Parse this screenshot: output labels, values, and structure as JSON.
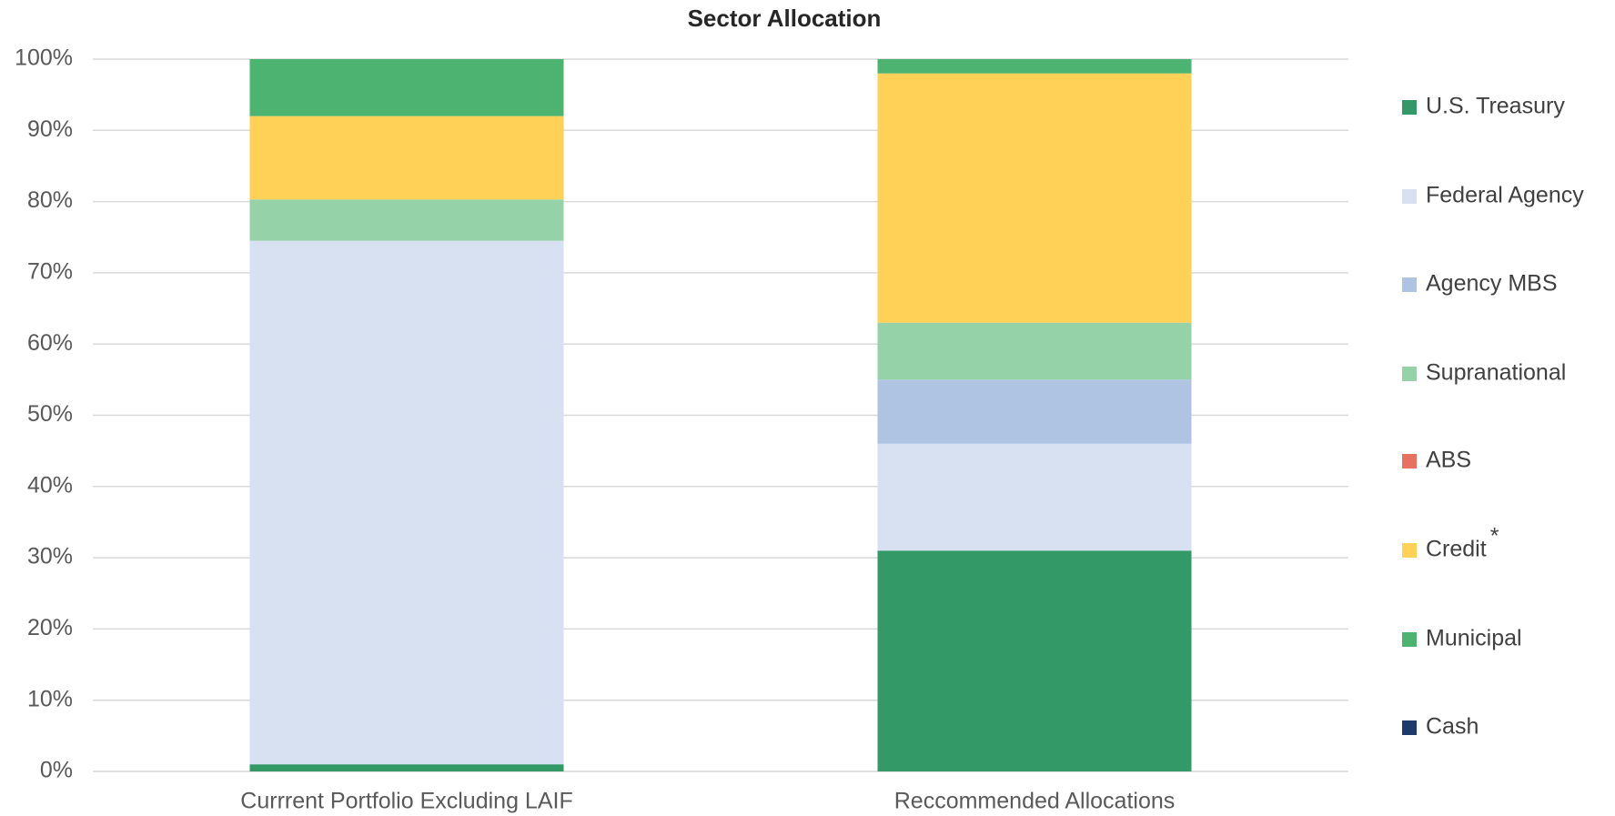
{
  "chart_data": {
    "type": "stacked_bar",
    "title": "Sector Allocation",
    "categories": [
      "Currrent Portfolio Excluding LAIF",
      "Reccommended Allocations"
    ],
    "series": [
      {
        "name": "U.S. Treasury",
        "color": "#339966",
        "values": [
          1,
          31
        ]
      },
      {
        "name": "Federal Agency",
        "color": "#d7e1f2",
        "values": [
          73.5,
          15
        ]
      },
      {
        "name": "Agency MBS",
        "color": "#afc4e3",
        "values": [
          0,
          9
        ]
      },
      {
        "name": "Supranational",
        "color": "#95d2a7",
        "values": [
          5.8,
          8
        ]
      },
      {
        "name": "ABS",
        "color": "#e87060",
        "values": [
          0,
          0
        ]
      },
      {
        "name": "Credit",
        "superscript": "*",
        "color": "#ffd157",
        "values": [
          11.7,
          35
        ]
      },
      {
        "name": "Municipal",
        "color": "#4cb470",
        "values": [
          8,
          2
        ]
      },
      {
        "name": "Cash",
        "color": "#1f3a6a",
        "values": [
          0,
          0
        ]
      }
    ],
    "ylim": [
      0,
      100
    ],
    "yticks": [
      {
        "value": 0,
        "label": "0%"
      },
      {
        "value": 10,
        "label": "10%"
      },
      {
        "value": 20,
        "label": "20%"
      },
      {
        "value": 30,
        "label": "30%"
      },
      {
        "value": 40,
        "label": "40%"
      },
      {
        "value": 50,
        "label": "50%"
      },
      {
        "value": 60,
        "label": "60%"
      },
      {
        "value": 70,
        "label": "70%"
      },
      {
        "value": 80,
        "label": "80%"
      },
      {
        "value": 90,
        "label": "90%"
      },
      {
        "value": 100,
        "label": "100%"
      }
    ],
    "grid": true,
    "legend": "right"
  }
}
